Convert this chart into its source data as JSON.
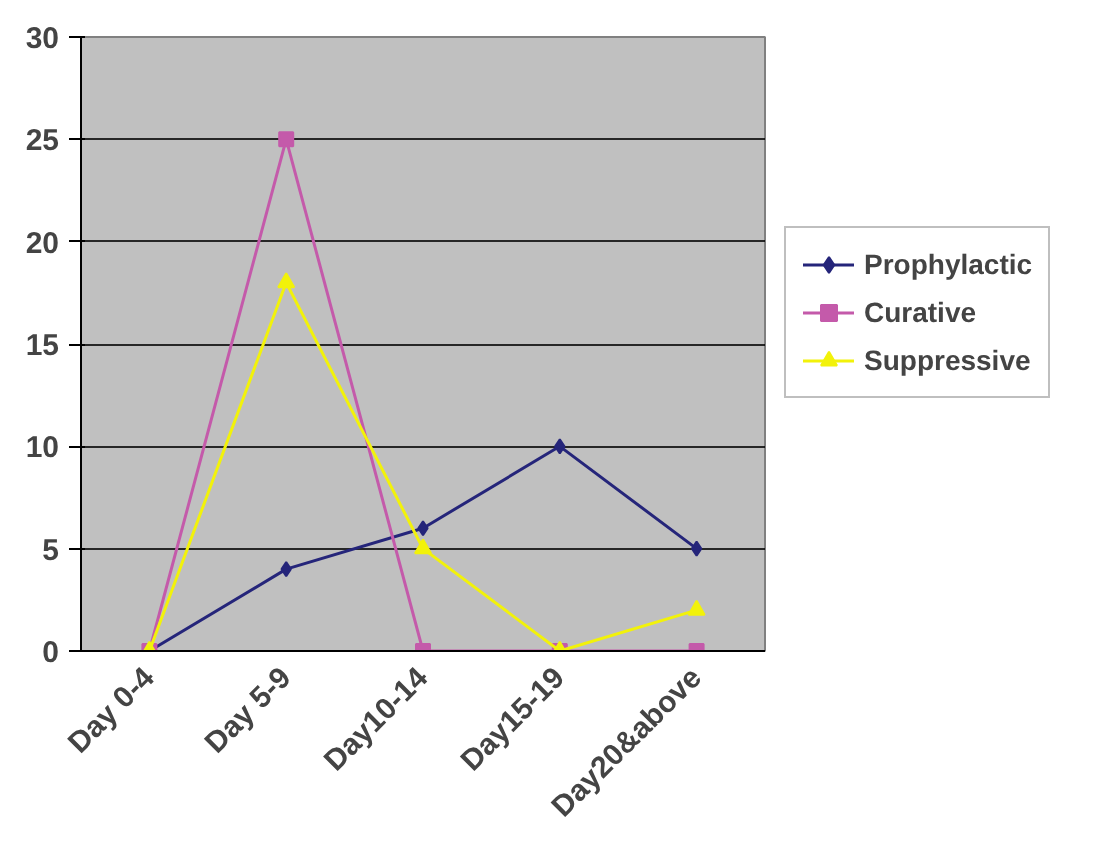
{
  "chart_data": {
    "type": "line",
    "categories": [
      "Day 0-4",
      "Day 5-9",
      "Day10-14",
      "Day15-19",
      "Day20&above"
    ],
    "series": [
      {
        "name": "Prophylactic",
        "color": "#25257a",
        "marker": "diamond",
        "values": [
          0,
          4,
          6,
          10,
          5
        ]
      },
      {
        "name": "Curative",
        "color": "#c45aaa",
        "marker": "square",
        "values": [
          0,
          25,
          0,
          0,
          0
        ]
      },
      {
        "name": "Suppressive",
        "color": "#f2f20a",
        "marker": "triangle",
        "values": [
          0,
          18,
          5,
          0,
          2
        ]
      }
    ],
    "ylim": [
      0,
      30
    ],
    "yticks": [
      0,
      5,
      10,
      15,
      20,
      25,
      30
    ],
    "grid": "y",
    "legend": "right"
  }
}
